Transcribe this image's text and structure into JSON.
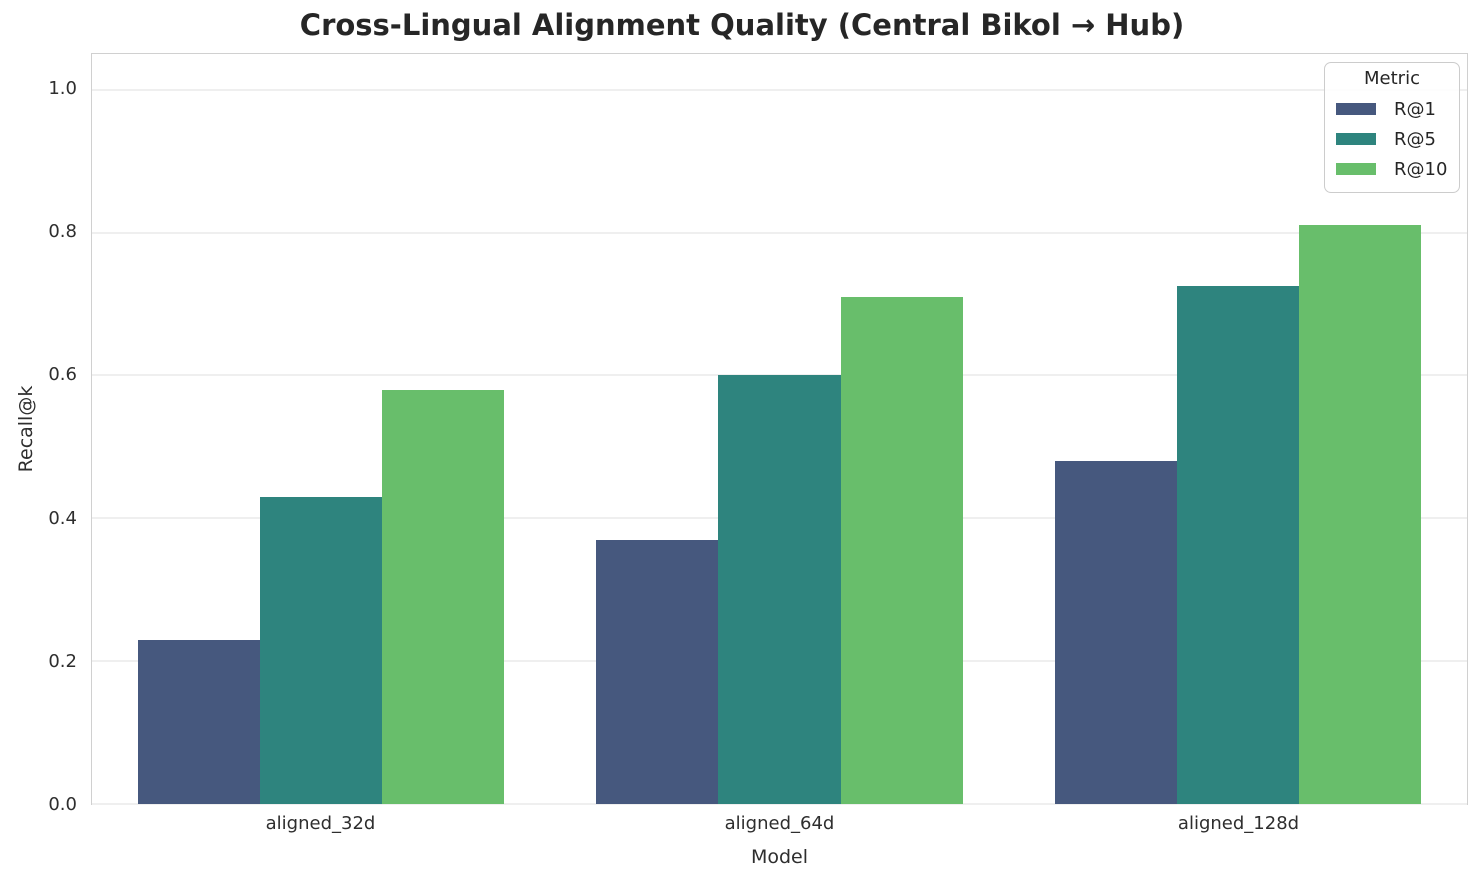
{
  "title": "Cross-Lingual Alignment Quality (Central Bikol → Hub)",
  "chart_data": {
    "type": "bar",
    "title": "Cross-Lingual Alignment Quality (Central Bikol → Hub)",
    "categories": [
      "aligned_32d",
      "aligned_64d",
      "aligned_128d"
    ],
    "series": [
      {
        "name": "R@1",
        "color": "#46587E",
        "values": [
          0.23,
          0.37,
          0.48
        ]
      },
      {
        "name": "R@5",
        "color": "#2E847E",
        "values": [
          0.43,
          0.6,
          0.725
        ]
      },
      {
        "name": "R@10",
        "color": "#68BE6B",
        "values": [
          0.58,
          0.71,
          0.81
        ]
      }
    ],
    "xlabel": "Model",
    "ylabel": "Recall@k",
    "ylim": [
      0,
      1.05
    ],
    "yticks": [
      0.0,
      0.2,
      0.4,
      0.6,
      0.8,
      1.0
    ],
    "ytick_labels": [
      "0.0",
      "0.2",
      "0.4",
      "0.6",
      "0.8",
      "1.0"
    ],
    "grid": "horizontal-only",
    "bar_group_fill": 0.8,
    "legend": {
      "title": "Metric",
      "position": "upper-right"
    }
  },
  "colors": {
    "background": "#ffffff",
    "gridline": "#efefef",
    "spine": "#d0d0d0",
    "title_text": "#262626",
    "tick_text": "#2e2e2e"
  }
}
